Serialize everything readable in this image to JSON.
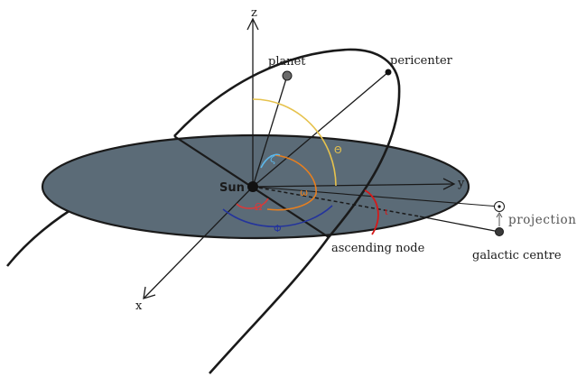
{
  "labels": {
    "z": "z",
    "x": "x",
    "y": "y",
    "planet": "planet",
    "pericenter": "pericenter",
    "sun": "Sun",
    "ascending_node": "ascending node",
    "galactic_centre": "galactic centre",
    "projection": "projection"
  },
  "angles": {
    "zeta": "ζ",
    "theta": "Θ",
    "omega": "ω",
    "Omega": "Ω",
    "Phi": "Φ",
    "iota": "ι"
  },
  "colors": {
    "plane_fill": "#5b6b77",
    "orbit": "#1a1a1a",
    "theta_arc": "#e6c24d",
    "omega_arc": "#e87f1e",
    "Omega_arc": "#d63a3a",
    "Phi_arc": "#24349c",
    "zeta_arc": "#5db6e8",
    "iota_arc": "#d61a1a"
  }
}
